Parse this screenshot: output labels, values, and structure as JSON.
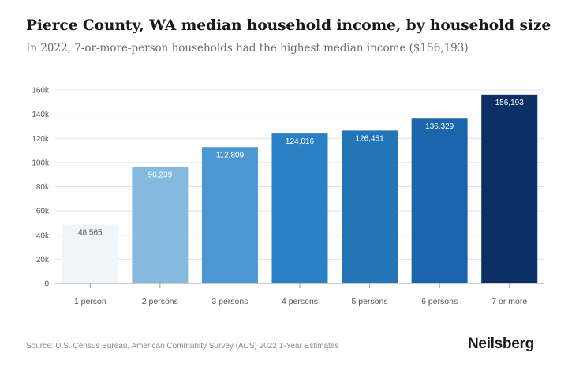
{
  "header": {
    "title": "Pierce County, WA median household income, by household size",
    "subtitle": "In 2022, 7-or-more-person households had the highest median income ($156,193)"
  },
  "chart_data": {
    "type": "bar",
    "title": "Pierce County, WA median household income, by household size",
    "xlabel": "",
    "ylabel": "",
    "categories": [
      "1 person",
      "2 persons",
      "3 persons",
      "4 persons",
      "5 persons",
      "6 persons",
      "7 or more"
    ],
    "values": [
      48565,
      96239,
      112809,
      124016,
      126451,
      136329,
      156193
    ],
    "value_labels": [
      "48,565",
      "96,239",
      "112,809",
      "124,016",
      "126,451",
      "136,329",
      "156,193"
    ],
    "colors": [
      "#eef5fb",
      "#85b9e0",
      "#4a97d2",
      "#2b7fc3",
      "#2474b8",
      "#1a65ac",
      "#0c2f66"
    ],
    "label_colors": [
      "#555555",
      "#ffffff",
      "#ffffff",
      "#ffffff",
      "#ffffff",
      "#ffffff",
      "#ffffff"
    ],
    "ylim": [
      0,
      160000
    ],
    "yticks": [
      0,
      20000,
      40000,
      60000,
      80000,
      100000,
      120000,
      140000,
      160000
    ],
    "ytick_labels": [
      "0",
      "20k",
      "40k",
      "60k",
      "80k",
      "100k",
      "120k",
      "140k",
      "160k"
    ],
    "grid": true,
    "legend": "none"
  },
  "footer": {
    "source": "Source: U.S. Census Bureau, American Community Survey (ACS) 2022 1-Year Estimates",
    "brand": "Neilsberg"
  }
}
